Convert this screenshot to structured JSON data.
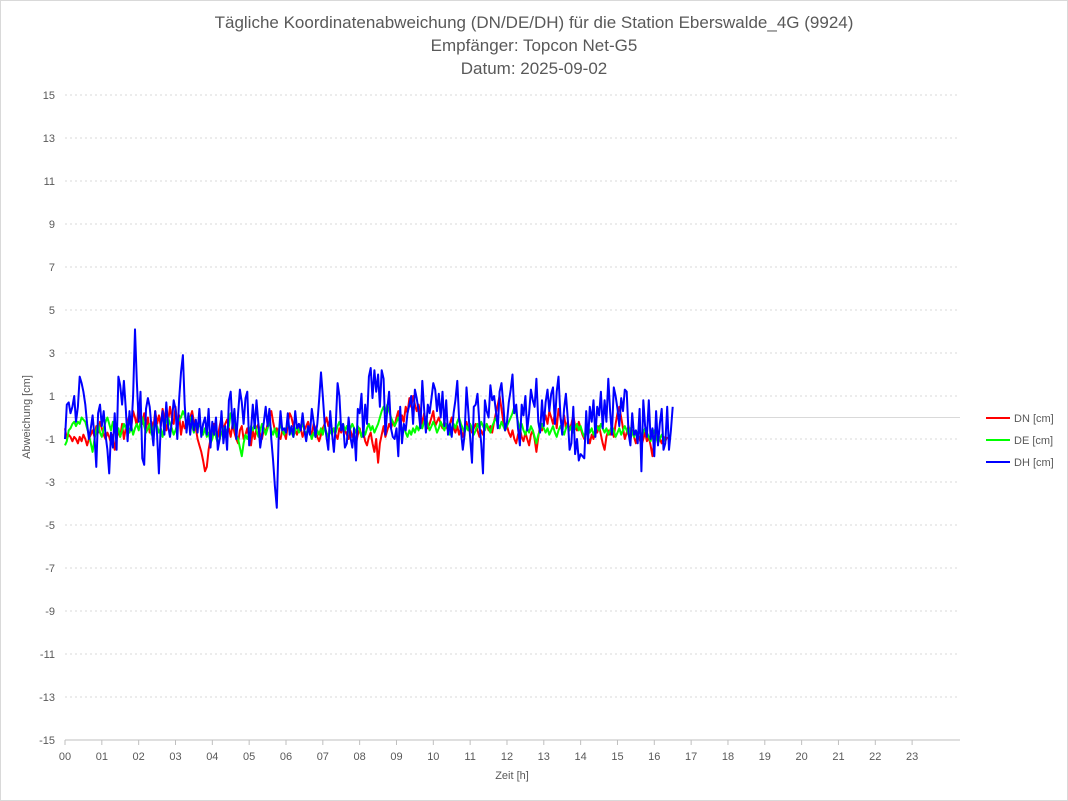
{
  "chart_data": {
    "type": "line",
    "title": "Tägliche Koordinatenabweichung (DN/DE/DH) für die Station Eberswalde_4G (9924)",
    "subtitle1": "Empfänger: Topcon Net-G5",
    "subtitle2": "Datum: 2025-09-02",
    "xlabel": "Zeit [h]",
    "ylabel": "Abweichung [cm]",
    "xlim": [
      0,
      24.3
    ],
    "ylim": [
      -15,
      15
    ],
    "x_ticks": [
      "00",
      "01",
      "02",
      "03",
      "04",
      "05",
      "06",
      "07",
      "08",
      "09",
      "10",
      "11",
      "12",
      "13",
      "14",
      "15",
      "16",
      "17",
      "18",
      "19",
      "20",
      "21",
      "22",
      "23"
    ],
    "y_ticks": [
      "15",
      "13",
      "11",
      "9",
      "7",
      "5",
      "3",
      "1",
      "-1",
      "-3",
      "-5",
      "-7",
      "-9",
      "-11",
      "-13",
      "-15"
    ],
    "y_tick_values": [
      15,
      13,
      11,
      9,
      7,
      5,
      3,
      1,
      -1,
      -3,
      -5,
      -7,
      -9,
      -11,
      -13,
      -15
    ],
    "grid": true,
    "legend_position": "right",
    "sample_interval_h": 0.05,
    "series": [
      {
        "name": "DN [cm]",
        "color": "#ff0000",
        "values": [
          -0.5,
          -1.0,
          -0.8,
          -0.9,
          -1.1,
          -0.9,
          -1.0,
          -1.2,
          -0.9,
          -1.1,
          -0.8,
          -1.0,
          -1.3,
          -1.0,
          -0.8,
          -0.6,
          -0.9,
          -0.4,
          -0.7,
          -0.2,
          -0.5,
          -0.8,
          -1.0,
          -0.7,
          -0.9,
          -1.2,
          -0.8,
          -1.5,
          -1.0,
          -0.6,
          -0.9,
          -0.3,
          -1.0,
          -0.5,
          -0.2,
          0.1,
          -0.4,
          0.3,
          0.0,
          -0.4,
          0.6,
          0.0,
          -0.3,
          0.2,
          -0.5,
          0.0,
          -0.7,
          -0.2,
          -0.5,
          0.3,
          -0.3,
          0.1,
          -0.4,
          0.4,
          0.0,
          -0.6,
          -0.2,
          0.5,
          0.0,
          -0.3,
          0.5,
          -0.4,
          0.1,
          -0.8,
          -0.2,
          -0.5,
          -0.4,
          -0.1,
          0.0,
          0.3,
          -0.2,
          -0.5,
          -1.0,
          -1.3,
          -1.6,
          -2.0,
          -2.5,
          -2.3,
          -1.5,
          -1.0,
          -0.7,
          -0.3,
          -0.5,
          -0.9,
          -0.4,
          0.0,
          -0.6,
          -0.3,
          -0.1,
          -0.5,
          -0.9,
          -0.3,
          -0.7,
          -1.0,
          -1.2,
          -0.6,
          -0.4,
          -1.0,
          -0.8,
          -0.5,
          -1.0,
          -1.3,
          -0.6,
          -1.0,
          -0.5,
          -0.3,
          -0.8,
          -1.0,
          -0.5,
          -0.7,
          -0.3,
          0.0,
          0.3,
          -0.2,
          -0.6,
          -0.5,
          -0.9,
          -1.0,
          -0.6,
          -0.7,
          -1.0,
          -0.3,
          0.2,
          0.0,
          -0.4,
          -0.6,
          -0.8,
          -0.3,
          -0.5,
          -0.9,
          -0.6,
          -0.4,
          -0.2,
          -0.6,
          -0.8,
          -0.3,
          -0.5,
          -0.9,
          -1.1,
          -0.8,
          -0.5,
          -0.3,
          0.0,
          -0.4,
          -0.1,
          -0.6,
          -0.5,
          -0.8,
          -1.0,
          -0.5,
          -0.7,
          -0.4,
          -0.6,
          -0.8,
          -1.0,
          -0.6,
          -0.9,
          -0.7,
          -1.2,
          -0.8,
          -0.5,
          -0.9,
          -0.7,
          -1.1,
          -1.3,
          -0.9,
          -0.7,
          -1.2,
          -1.6,
          -1.0,
          -2.1,
          -1.2,
          -0.8,
          -0.4,
          -0.9,
          -0.6,
          -0.3,
          -0.5,
          -0.2,
          -0.4,
          0.0,
          0.3,
          -0.5,
          0.1,
          -0.2,
          0.5,
          0.2,
          0.9,
          0.5,
          1.0,
          0.6,
          0.3,
          0.6,
          0.2,
          -0.3,
          0.2,
          -0.2,
          -0.5,
          -0.3,
          0.0,
          0.3,
          -0.4,
          -0.2,
          0.0,
          -0.3,
          -0.5,
          -0.2,
          -0.4,
          -0.6,
          -0.3,
          0.0,
          -0.5,
          -0.7,
          -0.4,
          -0.8,
          -0.5,
          -0.9,
          -0.6,
          -0.2,
          -0.6,
          -0.4,
          -0.7,
          -0.5,
          -0.3,
          -0.6,
          -0.9,
          -0.6,
          -0.8,
          -0.5,
          -0.3,
          -0.6,
          -0.4,
          -0.7,
          -0.2,
          0.2,
          0.6,
          1.0,
          0.4,
          -0.2,
          -0.6,
          -0.4,
          -0.7,
          -0.9,
          -0.6,
          -1.0,
          -1.2,
          -0.8,
          -0.5,
          -0.9,
          -1.1,
          -0.7,
          -1.0,
          -1.3,
          -0.8,
          -0.6,
          -1.0,
          -1.6,
          -0.9,
          -0.4,
          -0.6,
          -0.2,
          0.1,
          -0.3,
          0.3,
          0.0,
          -0.3,
          0.2,
          -0.5,
          0.4,
          0.0,
          -0.4,
          0.1,
          -0.5,
          -0.2,
          -0.6,
          -0.3,
          0.1,
          -0.4,
          -0.6,
          -0.2,
          -0.5,
          -0.8,
          -1.0,
          -0.6,
          -0.9,
          -1.2,
          -0.8,
          -1.0,
          -0.5,
          -0.7,
          -0.4,
          -0.8,
          -1.2,
          -1.5,
          -0.9,
          -0.6,
          -0.8,
          -0.5,
          -0.9,
          -0.3,
          0.2,
          0.5,
          0.0,
          -0.5,
          -1.0,
          -0.7,
          -0.4,
          -1.0,
          -0.6,
          -0.9,
          -1.2,
          -0.8,
          -1.0,
          -1.3,
          -1.0,
          -0.7,
          -1.1,
          -0.9,
          -1.3,
          -1.8,
          -1.0,
          -0.6,
          -0.8,
          -1.0,
          -1.2,
          -0.9,
          -1.1,
          -0.9
        ]
      },
      {
        "name": "DE [cm]",
        "color": "#00ff00",
        "values": [
          -1.3,
          -1.1,
          -0.6,
          -0.5,
          -0.3,
          -0.2,
          -0.4,
          -0.2,
          -0.3,
          0.0,
          -0.1,
          -0.2,
          -0.5,
          -0.8,
          -1.2,
          -1.6,
          -1.0,
          -0.6,
          -0.3,
          -0.7,
          -0.9,
          -0.5,
          -0.2,
          0.0,
          -0.3,
          -0.6,
          -0.2,
          -0.4,
          -0.7,
          -0.5,
          -0.9,
          -0.6,
          -0.3,
          -0.5,
          -0.2,
          -0.7,
          -0.4,
          -0.8,
          -0.5,
          -0.3,
          -0.6,
          -0.2,
          0.0,
          -0.4,
          -0.7,
          -0.5,
          -0.3,
          -0.8,
          -0.5,
          -0.2,
          -0.4,
          -0.7,
          -0.5,
          -0.9,
          -0.4,
          -0.2,
          0.0,
          -0.3,
          -0.5,
          -0.8,
          -0.6,
          -0.3,
          -0.1,
          0.0,
          0.3,
          0.1,
          -0.3,
          -0.2,
          0.0,
          -0.4,
          -0.7,
          -0.2,
          -0.5,
          -0.3,
          -0.6,
          -0.8,
          -0.5,
          -0.9,
          -0.7,
          -1.2,
          -1.0,
          -0.6,
          -0.9,
          -1.2,
          -1.0,
          -0.7,
          -0.5,
          -0.9,
          -0.6,
          -0.4,
          0.2,
          0.0,
          -0.3,
          -0.8,
          -1.0,
          -1.4,
          -1.8,
          -1.2,
          -0.8,
          -1.0,
          -0.7,
          -0.4,
          -0.6,
          -0.3,
          -0.6,
          -0.9,
          -0.6,
          -0.3,
          -0.5,
          -0.8,
          -0.5,
          -0.2,
          -0.6,
          -0.8,
          -0.5,
          -0.9,
          -0.6,
          -0.3,
          -0.6,
          -0.8,
          -0.5,
          -0.3,
          -0.5,
          -0.7,
          -0.9,
          -0.6,
          -0.4,
          -0.7,
          -0.5,
          -0.3,
          -0.6,
          -0.8,
          -0.5,
          -0.7,
          -1.0,
          -0.7,
          -0.9,
          -0.6,
          -0.8,
          -0.5,
          -0.8,
          -0.4,
          -0.7,
          -0.9,
          -0.6,
          -0.8,
          -0.5,
          -0.7,
          -0.4,
          -0.2,
          -0.5,
          -0.3,
          -0.6,
          -0.4,
          -0.7,
          -0.5,
          -0.3,
          -0.5,
          -0.7,
          -0.4,
          -0.6,
          -0.9,
          -0.6,
          -0.8,
          -0.5,
          -0.3,
          -0.6,
          -0.4,
          -0.7,
          -0.5,
          -0.3,
          0.0,
          0.3,
          0.5,
          0.2,
          0.6,
          0.3,
          0.0,
          -0.2,
          -0.4,
          -0.2,
          0.0,
          -0.3,
          -0.6,
          -0.4,
          -0.7,
          -0.9,
          -0.6,
          -0.8,
          -0.5,
          -0.7,
          -0.4,
          -0.6,
          -0.3,
          -0.5,
          -0.2,
          0.0,
          -0.3,
          -0.6,
          -0.4,
          -0.2,
          -0.4,
          -0.7,
          -0.5,
          -0.2,
          -0.4,
          -0.6,
          -0.3,
          -0.5,
          -0.8,
          -0.5,
          -0.3,
          -0.5,
          -0.2,
          0.0,
          -0.3,
          -0.5,
          -0.7,
          -0.4,
          -0.6,
          -0.3,
          -0.5,
          -0.8,
          -0.6,
          -0.3,
          -0.5,
          -0.2,
          -0.4,
          -0.6,
          -0.3,
          -0.5,
          -0.7,
          -0.4,
          -0.2,
          0.0,
          -0.3,
          -0.5,
          -0.2,
          -0.4,
          -0.6,
          -0.4,
          -0.2,
          0.0,
          0.2,
          0.5,
          0.2,
          -0.2,
          -0.5,
          -0.3,
          -0.6,
          -0.8,
          -0.5,
          -0.7,
          -0.4,
          -0.6,
          -0.9,
          -1.2,
          -0.8,
          -0.6,
          -0.3,
          -0.5,
          -0.7,
          -0.5,
          -0.8,
          -0.6,
          -0.4,
          -0.7,
          -0.9,
          -0.6,
          -0.4,
          -0.6,
          -0.8,
          -0.5,
          -0.3,
          -0.6,
          -0.4,
          -0.7,
          -0.5,
          -0.3,
          -0.6,
          -0.4,
          -0.7,
          -0.9,
          -0.6,
          -0.4,
          -0.7,
          -0.5,
          -0.8,
          -0.6,
          -0.4,
          -0.6,
          -0.3,
          -0.5,
          -0.7,
          -0.5,
          -0.8,
          -0.6,
          -0.4,
          -0.6,
          -0.9,
          -0.7,
          -0.5,
          -0.8,
          -0.6,
          -0.4,
          -0.6,
          -0.8,
          -0.5,
          -0.7,
          -0.9,
          -0.6,
          -0.8,
          -0.6,
          -0.9,
          -0.7,
          -0.5,
          -0.7,
          -0.9,
          -1.1,
          -0.8,
          -0.6,
          -0.9,
          -1.2,
          -1.0,
          -0.8,
          -1.0,
          -1.1
        ]
      },
      {
        "name": "DH [cm]",
        "color": "#0000ff",
        "values": [
          -1.0,
          0.6,
          0.7,
          0.2,
          0.5,
          1.0,
          -0.2,
          0.5,
          1.9,
          1.6,
          1.2,
          0.6,
          -0.3,
          -1.0,
          -0.5,
          0.1,
          -0.9,
          -2.3,
          0.2,
          0.6,
          -0.4,
          0.3,
          -0.8,
          -1.5,
          -2.6,
          -0.7,
          -1.4,
          0.2,
          -1.5,
          1.9,
          1.5,
          0.6,
          1.7,
          0.4,
          -1.1,
          0.3,
          -0.6,
          1.0,
          4.1,
          1.7,
          -0.2,
          1.2,
          -1.9,
          -2.2,
          0.4,
          0.9,
          0.5,
          -0.5,
          -1.3,
          0.3,
          -0.8,
          -2.6,
          -0.3,
          0.3,
          -0.8,
          0.7,
          -0.4,
          -0.9,
          -0.2,
          0.8,
          0.4,
          -1.0,
          0.9,
          2.1,
          2.9,
          0.6,
          -0.7,
          0.2,
          -0.8,
          0.1,
          -0.6,
          -0.1,
          -0.7,
          0.4,
          -0.9,
          -0.3,
          0.0,
          -0.8,
          0.4,
          -1.4,
          -0.2,
          -0.8,
          0.0,
          -1.5,
          -1.0,
          0.3,
          -1.2,
          -0.4,
          -1.5,
          0.8,
          1.2,
          -0.5,
          0.4,
          -1.0,
          0.2,
          1.3,
          0.7,
          -0.3,
          0.9,
          1.2,
          -1.3,
          -0.6,
          0.6,
          -0.5,
          0.8,
          -0.3,
          -1.4,
          -0.8,
          -0.2,
          0.5,
          -0.4,
          0.4,
          -1.0,
          -2.0,
          -3.2,
          -4.2,
          -1.0,
          0.3,
          -0.6,
          -0.5,
          -0.7,
          0.2,
          -0.8,
          -0.4,
          -0.9,
          0.3,
          -0.5,
          -0.3,
          -0.6,
          0.2,
          -0.6,
          -1.1,
          -0.4,
          -0.8,
          0.4,
          -0.2,
          -0.9,
          -0.3,
          0.8,
          2.1,
          1.0,
          -0.3,
          -0.9,
          -1.5,
          0.3,
          -0.7,
          -1.6,
          -0.4,
          1.6,
          1.0,
          -0.6,
          -0.3,
          -1.4,
          -1.2,
          0.0,
          -0.9,
          -1.4,
          -0.5,
          -2.0,
          0.4,
          0.2,
          1.1,
          -0.9,
          0.6,
          -0.3,
          1.9,
          2.3,
          0.9,
          2.2,
          1.2,
          2.0,
          0.5,
          2.2,
          1.8,
          -0.8,
          0.4,
          1.2,
          -0.5,
          -0.9,
          -1.0,
          -0.5,
          -1.8,
          0.5,
          -1.2,
          -0.3,
          -0.6,
          0.2,
          0.6,
          1.0,
          -0.3,
          1.3,
          0.9,
          0.3,
          -0.5,
          1.7,
          0.4,
          -0.7,
          0.6,
          0.2,
          0.9,
          1.6,
          1.3,
          0.3,
          1.1,
          0.0,
          1.2,
          -0.4,
          0.8,
          -0.8,
          -0.3,
          -0.9,
          0.2,
          0.8,
          1.7,
          -0.1,
          -0.6,
          -1.5,
          -0.8,
          1.4,
          0.3,
          -0.9,
          -2.1,
          0.5,
          0.6,
          1.1,
          -0.3,
          -1.2,
          -2.6,
          0.8,
          0.3,
          0.0,
          1.5,
          0.8,
          1.0,
          0.3,
          -0.5,
          1.2,
          1.6,
          0.6,
          -0.6,
          -0.2,
          0.7,
          1.3,
          2.0,
          0.2,
          0.6,
          -0.5,
          -1.3,
          0.6,
          0.1,
          1.0,
          -0.6,
          0.2,
          1.3,
          0.8,
          0.5,
          1.8,
          -0.2,
          -0.7,
          0.8,
          -0.4,
          0.7,
          1.3,
          0.3,
          1.1,
          1.4,
          -0.3,
          1.2,
          1.9,
          0.1,
          -0.8,
          0.4,
          1.1,
          0.0,
          -1.5,
          -1.2,
          0.5,
          -1.7,
          -1.0,
          -2.0,
          -1.7,
          -1.8,
          -1.9,
          0.3,
          -1.2,
          0.5,
          -0.2,
          0.8,
          -0.9,
          0.5,
          0.1,
          1.2,
          -0.5,
          0.8,
          -0.2,
          1.8,
          0.3,
          -0.8,
          1.4,
          1.0,
          0.4,
          -0.4,
          0.9,
          0.3,
          1.3,
          1.2,
          -0.7,
          -1.3,
          0.2,
          -0.8,
          -0.6,
          -1.2,
          0.4,
          -2.5,
          0.8,
          -0.4,
          -0.9,
          0.8,
          -1.0,
          -0.5,
          -1.8,
          0.3,
          -1.3,
          -0.3,
          0.4,
          -1.5,
          -1.2,
          0.5,
          -1.5,
          -0.6,
          0.5
        ]
      }
    ]
  }
}
